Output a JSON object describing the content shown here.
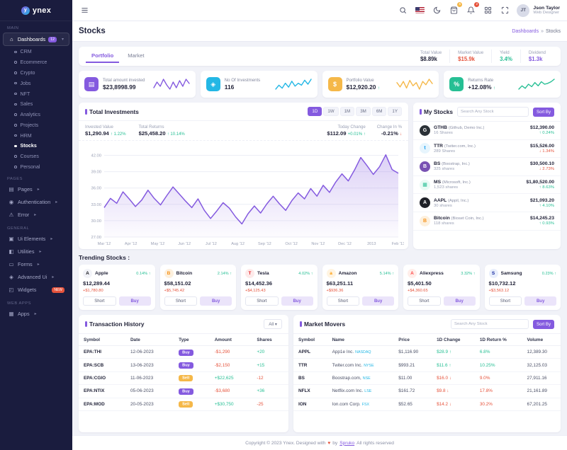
{
  "theme": {
    "primary": "#845adf",
    "secondary": "#23b7e5",
    "success": "#26bf94",
    "warning": "#f5b849",
    "danger": "#e6533c"
  },
  "brand": {
    "name": "ynex",
    "logo_glyph": "y"
  },
  "header": {
    "user_name": "Json Taylor",
    "user_role": "Web Designer",
    "avatar_initials": "JT",
    "cart_badge": "5",
    "bell_badge": "2"
  },
  "page": {
    "title": "Stocks",
    "breadcrumb_section": "Dashboards",
    "breadcrumb_sep": "»",
    "breadcrumb_current": "Stocks"
  },
  "sidebar_items": [
    {
      "t": "section",
      "label": "MAIN",
      "dn": "sidebar-section-main",
      "ia": "false"
    },
    {
      "t": "item",
      "label": "Dashboards",
      "icon": "⌂",
      "icon_name": "home-icon",
      "badge": "12",
      "chev": "▾",
      "state": "active",
      "dn": "sidebar-item-dashboards"
    },
    {
      "t": "sub",
      "label": "CRM",
      "dn": "sidebar-subitem-crm"
    },
    {
      "t": "sub",
      "label": "Ecommerce",
      "dn": "sidebar-subitem-ecommerce"
    },
    {
      "t": "sub",
      "label": "Crypto",
      "dn": "sidebar-subitem-crypto"
    },
    {
      "t": "sub",
      "label": "Jobs",
      "dn": "sidebar-subitem-jobs"
    },
    {
      "t": "sub",
      "label": "NFT",
      "dn": "sidebar-subitem-nft"
    },
    {
      "t": "sub",
      "label": "Sales",
      "dn": "sidebar-subitem-sales"
    },
    {
      "t": "sub",
      "label": "Analytics",
      "dn": "sidebar-subitem-analytics"
    },
    {
      "t": "sub",
      "label": "Projects",
      "dn": "sidebar-subitem-projects"
    },
    {
      "t": "sub",
      "label": "HRM",
      "dn": "sidebar-subitem-hrm"
    },
    {
      "t": "sub",
      "label": "Stocks",
      "state": "active",
      "dn": "sidebar-subitem-stocks"
    },
    {
      "t": "sub",
      "label": "Courses",
      "dn": "sidebar-subitem-courses"
    },
    {
      "t": "sub",
      "label": "Personal",
      "dn": "sidebar-subitem-personal"
    },
    {
      "t": "section",
      "label": "PAGES",
      "dn": "sidebar-section-pages",
      "ia": "false"
    },
    {
      "t": "item",
      "label": "Pages",
      "icon": "▤",
      "icon_name": "pages-icon",
      "chev": "▸",
      "dn": "sidebar-item-pages"
    },
    {
      "t": "item",
      "label": "Authentication",
      "icon": "◉",
      "icon_name": "lock-icon",
      "chev": "▸",
      "dn": "sidebar-item-authentication"
    },
    {
      "t": "item",
      "label": "Error",
      "icon": "⚠",
      "icon_name": "error-icon",
      "chev": "▸",
      "dn": "sidebar-item-error"
    },
    {
      "t": "section",
      "label": "GENERAL",
      "dn": "sidebar-section-general",
      "ia": "false"
    },
    {
      "t": "item",
      "label": "Ui Elements",
      "icon": "▣",
      "icon_name": "ui-elements-icon",
      "chev": "▸",
      "dn": "sidebar-item-ui-elements"
    },
    {
      "t": "item",
      "label": "Utilities",
      "icon": "◧",
      "icon_name": "utilities-icon",
      "chev": "▸",
      "dn": "sidebar-item-utilities"
    },
    {
      "t": "item",
      "label": "Forms",
      "icon": "▭",
      "icon_name": "forms-icon",
      "chev": "▸",
      "dn": "sidebar-item-forms"
    },
    {
      "t": "item",
      "label": "Advanced Ui",
      "icon": "◈",
      "icon_name": "advanced-ui-icon",
      "chev": "▸",
      "dn": "sidebar-item-advanced-ui"
    },
    {
      "t": "item",
      "label": "Widgets",
      "icon": "◰",
      "icon_name": "widgets-icon",
      "badge2": "NEW",
      "dn": "sidebar-item-widgets"
    },
    {
      "t": "section",
      "label": "WEB APPS",
      "dn": "sidebar-section-web-apps",
      "ia": "false"
    },
    {
      "t": "item",
      "label": "Apps",
      "icon": "▦",
      "icon_name": "apps-icon",
      "chev": "▸",
      "dn": "sidebar-item-apps"
    }
  ],
  "portfolio_tabs": [
    {
      "label": "Portfolio",
      "state": "active",
      "dn": "tab-portfolio"
    },
    {
      "label": "Market",
      "state": "",
      "dn": "tab-market"
    }
  ],
  "summary_stats": [
    {
      "label": "Total Value",
      "value": "$8.89k",
      "tone": "dark"
    },
    {
      "label": "Market Value",
      "value": "$15.9k",
      "tone": "danger"
    },
    {
      "label": "Yield",
      "value": "3.4%",
      "tone": "success"
    },
    {
      "label": "Dividend",
      "value": "$1.3k",
      "tone": "primary"
    }
  ],
  "stat_cards": [
    {
      "label": "Total amount invested",
      "value": "$23,8998.99",
      "arrow": "",
      "icon_name": "wallet-icon",
      "glyph": "▤",
      "color": "#845adf",
      "spark": [
        22,
        30,
        24,
        34,
        26,
        20,
        30,
        22,
        32,
        24,
        34,
        28
      ]
    },
    {
      "label": "No Of Investments",
      "value": "116",
      "arrow": "",
      "icon_name": "briefcase-icon",
      "glyph": "◈",
      "color": "#23b7e5",
      "spark": [
        18,
        26,
        20,
        30,
        22,
        34,
        24,
        30,
        26,
        36,
        28,
        38
      ]
    },
    {
      "label": "Portfolio Value",
      "value": "$12,920.20",
      "arrow": "↑",
      "icon_name": "dollar-icon",
      "glyph": "$",
      "color": "#f5b849",
      "spark": [
        30,
        22,
        32,
        20,
        34,
        24,
        30,
        18,
        32,
        26,
        36,
        28
      ]
    },
    {
      "label": "Returns Rate",
      "value": "+12.08%",
      "arrow": "↑",
      "icon_name": "percent-icon",
      "glyph": "%",
      "color": "#26bf94",
      "spark": [
        16,
        24,
        18,
        28,
        22,
        32,
        24,
        34,
        28,
        30,
        34,
        40
      ]
    }
  ],
  "investments": {
    "title": "Total Investments",
    "ranges": [
      {
        "label": "1D",
        "state": "active"
      },
      {
        "label": "1W",
        "state": ""
      },
      {
        "label": "1M",
        "state": ""
      },
      {
        "label": "3M",
        "state": ""
      },
      {
        "label": "6M",
        "state": ""
      },
      {
        "label": "1Y",
        "state": ""
      }
    ],
    "stats_left": [
      {
        "label": "Invested Value",
        "value": "$1,290.94",
        "delta": "↑ 1.22%",
        "dir": "up"
      },
      {
        "label": "Total Returns",
        "value": "$25,458.20",
        "delta": "↑ 10.14%",
        "dir": "up"
      }
    ],
    "stats_right": [
      {
        "label": "Today Change",
        "value": "$112.09",
        "delta": "+0.01% ↑",
        "dir": "up"
      },
      {
        "label": "Change In %",
        "value": "-0.21%",
        "delta": "↓",
        "dir": "down"
      }
    ]
  },
  "chart_data": {
    "type": "area",
    "title": "Total Investments",
    "x": [
      "Mar '12",
      "Apr '12",
      "May '12",
      "Jun '12",
      "Jul '12",
      "Aug '12",
      "Sep '12",
      "Oct '12",
      "Nov '12",
      "Dec '12",
      "2013",
      "Feb '13"
    ],
    "values": [
      32.4,
      34.1,
      33.2,
      35.3,
      34.0,
      32.6,
      33.8,
      35.6,
      34.1,
      32.9,
      34.6,
      36.2,
      34.9,
      33.6,
      32.4,
      34.0,
      31.9,
      30.4,
      31.8,
      33.3,
      32.3,
      30.7,
      29.4,
      31.3,
      32.7,
      31.4,
      33.1,
      34.5,
      33.1,
      31.9,
      33.7,
      35.1,
      34.0,
      35.9,
      34.5,
      36.5,
      35.2,
      37.1,
      38.6,
      37.3,
      39.3,
      41.6,
      40.1,
      38.5,
      39.9,
      42.1,
      39.4,
      38.7
    ],
    "ylim": [
      27,
      43.5
    ],
    "yticks": [
      27,
      30,
      33,
      36,
      39,
      42
    ],
    "grid": true,
    "legend": false,
    "line_color": "#845adf"
  },
  "my_stocks": {
    "title": "My Stocks",
    "search_placeholder": "Search Any Stock",
    "sort_label": "Sort By",
    "items": [
      {
        "symbol": "GTHB",
        "company": "(Github, Demo Inc.)",
        "shares": "16 Shares",
        "value": "$12,390.00",
        "change": "↑ 0.24%",
        "dir": "up",
        "icon_name": "github-icon",
        "glyph": "G",
        "bg": "#2b3137",
        "fg": "#ffffff"
      },
      {
        "symbol": "TTR",
        "company": "(Twiter.com, Inc.)",
        "shares": "289 Shares",
        "value": "$15,526.00",
        "change": "↓ 1.34%",
        "dir": "down",
        "icon_name": "twitter-icon",
        "glyph": "t",
        "bg": "#e7f5fd",
        "fg": "#1da1f2"
      },
      {
        "symbol": "BS",
        "company": "(Boostrap, Inc.)",
        "shares": "325 shares",
        "value": "$30,500.10",
        "change": "↓ 2.73%",
        "dir": "down",
        "icon_name": "bootstrap-icon",
        "glyph": "B",
        "bg": "#7952b3",
        "fg": "#ffffff"
      },
      {
        "symbol": "MS",
        "company": "(Microsoft, Inc.)",
        "shares": "1,523 shares",
        "value": "$1,80,520.00",
        "change": "↑ 8.63%",
        "dir": "up",
        "icon_name": "microsoft-icon",
        "glyph": "▦",
        "bg": "#e9fbf5",
        "fg": "#26bf94"
      },
      {
        "symbol": "AAPL",
        "company": "(Appil, Inc.)",
        "shares": "30 shares",
        "value": "$21,093.20",
        "change": "↑ 4.10%",
        "dir": "up",
        "icon_name": "apple-icon",
        "glyph": "A",
        "bg": "#1f2128",
        "fg": "#ffffff"
      },
      {
        "symbol": "Bitcoin",
        "company": "(Bioset Coin, Inc.)",
        "shares": "118 shares",
        "value": "$14,245.23",
        "change": "↑ 0.93%",
        "dir": "up",
        "icon_name": "bitcoin-icon",
        "glyph": "B",
        "bg": "#fdf0dd",
        "fg": "#f7931a"
      }
    ]
  },
  "trending": {
    "title": "Trending Stocks :",
    "short_label": "Short",
    "buy_label": "Buy",
    "items": [
      {
        "name": "Apple",
        "pct": "0.14% ↑",
        "pct_dir": "up",
        "price": "$12,289.44",
        "change": "+$1,780.80",
        "change_dir": "down",
        "icon_name": "apple-icon",
        "glyph": "A",
        "bg": "#f2f3f8",
        "fg": "#16171c"
      },
      {
        "name": "Bitcoin",
        "pct": "2.14% ↑",
        "pct_dir": "up",
        "price": "$58,151.02",
        "change": "+$5,745.42",
        "change_dir": "down",
        "icon_name": "bitcoin-icon",
        "glyph": "B",
        "bg": "#fdf0dd",
        "fg": "#f7931a"
      },
      {
        "name": "Tesla",
        "pct": "4.02% ↑",
        "pct_dir": "up",
        "price": "$14,452.36",
        "change": "+$4,125.43",
        "change_dir": "down",
        "icon_name": "tesla-icon",
        "glyph": "T",
        "bg": "#fdeaea",
        "fg": "#e82127"
      },
      {
        "name": "Amazon",
        "pct": "5.14% ↑",
        "pct_dir": "up",
        "price": "$63,251.11",
        "change": "+$936.36",
        "change_dir": "down",
        "icon_name": "amazon-icon",
        "glyph": "a",
        "bg": "#fff4e2",
        "fg": "#ff9900"
      },
      {
        "name": "Aliexpress",
        "pct": "3.32% ↑",
        "pct_dir": "up",
        "price": "$5,401.50",
        "change": "+$4,360.65",
        "change_dir": "down",
        "icon_name": "aliexpress-icon",
        "glyph": "A",
        "bg": "#ffeeea",
        "fg": "#ff4747"
      },
      {
        "name": "Samsung",
        "pct": "0.23% ↑",
        "pct_dir": "up",
        "price": "$10,732.12",
        "change": "+$3,563.12",
        "change_dir": "down",
        "icon_name": "samsung-icon",
        "glyph": "S",
        "bg": "#e9effc",
        "fg": "#1428a0"
      }
    ]
  },
  "transactions": {
    "title": "Transaction History",
    "filter_label": "All",
    "filter_caret": "▾",
    "columns": [
      "Symbol",
      "Date",
      "Type",
      "Amount",
      "Shares"
    ],
    "rows": [
      {
        "symbol": "EPA:THI",
        "date": "12-06-2023",
        "type": "Buy",
        "kind": "buy",
        "amount": "-$1,290",
        "amount_dir": "down",
        "shares": "+20",
        "shares_dir": "up"
      },
      {
        "symbol": "EPA:SCB",
        "date": "13-06-2023",
        "type": "Buy",
        "kind": "buy",
        "amount": "-$2,150",
        "amount_dir": "down",
        "shares": "+15",
        "shares_dir": "up"
      },
      {
        "symbol": "EPA:CGIO",
        "date": "11-06-2023",
        "type": "Sell",
        "kind": "sell",
        "amount": "+$22,625",
        "amount_dir": "up",
        "shares": "-12",
        "shares_dir": "down"
      },
      {
        "symbol": "EPA:NTIX",
        "date": "05-06-2023",
        "type": "Buy",
        "kind": "buy",
        "amount": "-$3,680",
        "amount_dir": "down",
        "shares": "+36",
        "shares_dir": "up"
      },
      {
        "symbol": "EPA:MOD",
        "date": "20-05-2023",
        "type": "Sell",
        "kind": "sell",
        "amount": "+$30,750",
        "amount_dir": "up",
        "shares": "-25",
        "shares_dir": "down"
      }
    ]
  },
  "market_movers": {
    "title": "Market Movers",
    "search_placeholder": "Search Any Stock",
    "sort_label": "Sort By",
    "columns": [
      "Symbol",
      "Name",
      "Price",
      "1D Change",
      "1D Return %",
      "Volume"
    ],
    "rows": [
      {
        "symbol": "APPL",
        "name": "App1e Inc.",
        "exchange": "NASDAQ",
        "price": "$1,116.90",
        "change": "$28.9 ↑",
        "change_dir": "up",
        "ret": "6.8%",
        "ret_dir": "up",
        "volume": "12,389.30"
      },
      {
        "symbol": "TTR",
        "name": "Twiter.com Inc.",
        "exchange": "NYSE",
        "price": "$993.21",
        "change": "$11.6 ↑",
        "change_dir": "up",
        "ret": "10.25%",
        "ret_dir": "up",
        "volume": "32,125.03"
      },
      {
        "symbol": "BS",
        "name": "Boostrap.com,",
        "exchange": "NSE",
        "price": "$11.00",
        "change": "$16.0 ↓",
        "change_dir": "down",
        "ret": "9.0%",
        "ret_dir": "down",
        "volume": "27,911.16"
      },
      {
        "symbol": "NFLX",
        "name": "Netflix.com Inc.",
        "exchange": "LSE",
        "price": "$161.72",
        "change": "$9.8 ↓",
        "change_dir": "down",
        "ret": "17.8%",
        "ret_dir": "down",
        "volume": "21,161.89"
      },
      {
        "symbol": "ION",
        "name": "Ion.com Corp.",
        "exchange": "FSX",
        "price": "$52.65",
        "change": "$14.2 ↓",
        "change_dir": "down",
        "ret": "30.2%",
        "ret_dir": "down",
        "volume": "67,201.25"
      }
    ]
  },
  "footer": {
    "before": "Copyright © 2023 Ynex. Designed with",
    "heart": "♥",
    "by": "by",
    "link": "Spruko",
    "after": "All rights reserved"
  }
}
